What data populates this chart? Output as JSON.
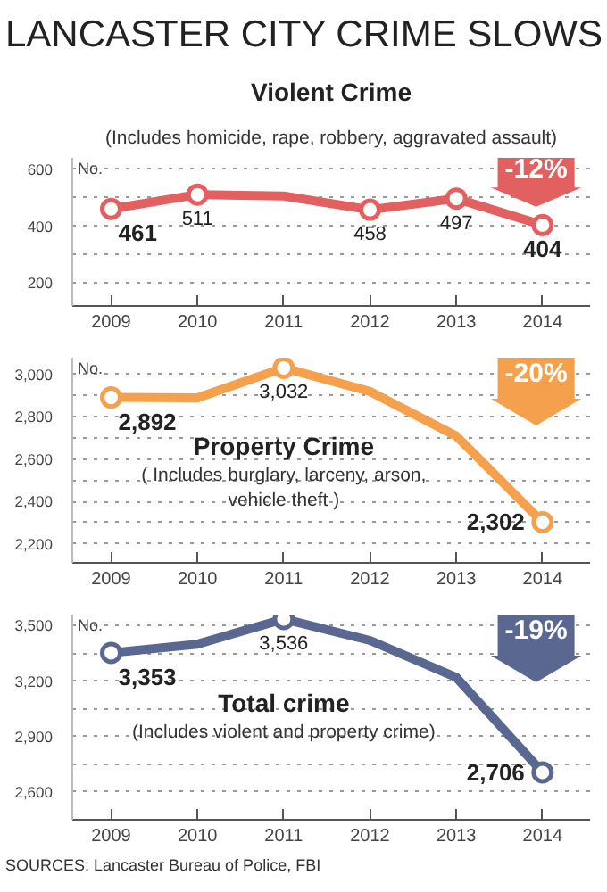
{
  "chart_data": [
    {
      "type": "line",
      "title": "Violent Crime",
      "subtitle": "(Includes homicide, rape, robbery, aggravated assault)",
      "ylabel": "No.",
      "categories": [
        "2009",
        "2010",
        "2011",
        "2012",
        "2013",
        "2014"
      ],
      "series": [
        {
          "color": "#e26060",
          "values": [
            461,
            511,
            506,
            458,
            497,
            404
          ],
          "value_labels": [
            "461",
            "511",
            null,
            "458",
            "497",
            "404"
          ]
        }
      ],
      "ylim": [
        120,
        640
      ],
      "yticks": [
        {
          "value": 200,
          "label": "200"
        },
        {
          "value": 300,
          "label": null
        },
        {
          "value": 400,
          "label": "400"
        },
        {
          "value": 500,
          "label": null
        },
        {
          "value": 600,
          "label": "600"
        }
      ],
      "grid": "y",
      "marker": "circle",
      "line_style": "solid",
      "annotations": [
        "LANCASTER CITY CRIME SLOWS",
        "-12%"
      ]
    },
    {
      "type": "line",
      "title": "Property Crime",
      "subtitle": "( Includes burglary, larceny, arson, vehicle theft )",
      "ylabel": "No.",
      "categories": [
        "2009",
        "2010",
        "2011",
        "2012",
        "2013",
        "2014"
      ],
      "series": [
        {
          "color": "#f5a04c",
          "values": [
            2892,
            2890,
            3032,
            2920,
            2710,
            2302
          ],
          "value_labels": [
            "2,892",
            null,
            "3,032",
            null,
            null,
            "2,302"
          ]
        }
      ],
      "ylim": [
        2110,
        3080
      ],
      "yticks": [
        {
          "value": 2200,
          "label": "2,200"
        },
        {
          "value": 2300,
          "label": null
        },
        {
          "value": 2400,
          "label": "2,400"
        },
        {
          "value": 2500,
          "label": null
        },
        {
          "value": 2600,
          "label": "2,600"
        },
        {
          "value": 2700,
          "label": null
        },
        {
          "value": 2800,
          "label": "2,800"
        },
        {
          "value": 2900,
          "label": null
        },
        {
          "value": 3000,
          "label": "3,000"
        }
      ],
      "grid": "y",
      "marker": "circle",
      "line_style": "solid",
      "annotations": [
        "-20%"
      ]
    },
    {
      "type": "line",
      "title": "Total crime",
      "subtitle": "(Includes violent and property crime)",
      "ylabel": "No.",
      "categories": [
        "2009",
        "2010",
        "2011",
        "2012",
        "2013",
        "2014"
      ],
      "series": [
        {
          "color": "#5a6891",
          "values": [
            3353,
            3400,
            3536,
            3420,
            3220,
            2706
          ],
          "value_labels": [
            "3,353",
            null,
            "3,536",
            null,
            null,
            "2,706"
          ]
        }
      ],
      "ylim": [
        2450,
        3560
      ],
      "yticks": [
        {
          "value": 2600,
          "label": "2,600"
        },
        {
          "value": 2750,
          "label": null
        },
        {
          "value": 2900,
          "label": "2,900"
        },
        {
          "value": 3050,
          "label": null
        },
        {
          "value": 3200,
          "label": "3,200"
        },
        {
          "value": 3350,
          "label": null
        },
        {
          "value": 3500,
          "label": "3,500"
        }
      ],
      "grid": "y",
      "marker": "circle",
      "line_style": "solid",
      "annotations": [
        "-19%",
        "SOURCES:  Lancaster Bureau of Police, FBI"
      ]
    }
  ]
}
